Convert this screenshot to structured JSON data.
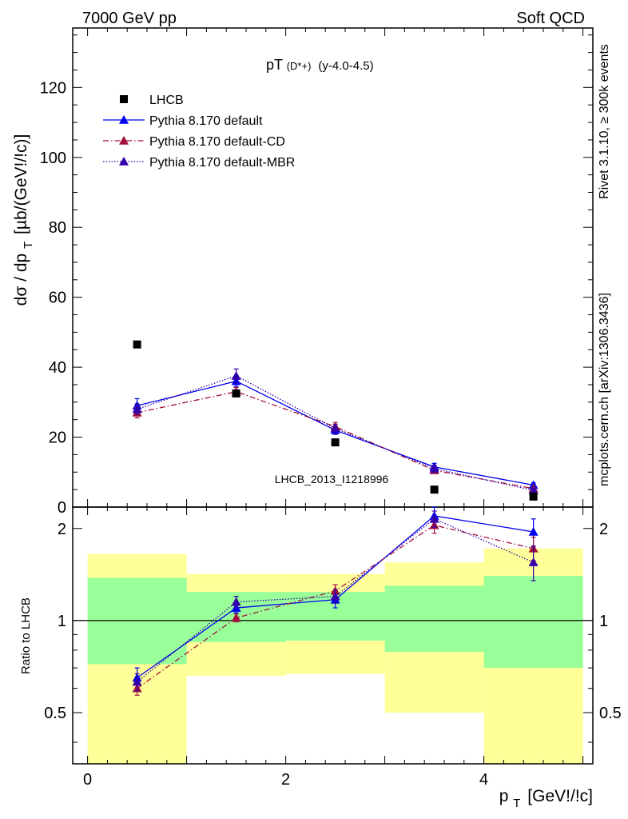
{
  "header": {
    "energy_label": "7000 GeV pp",
    "process_label": "Soft QCD"
  },
  "side_labels": {
    "rivet": "Rivet 3.1.10, ≥ 300k events",
    "mcplots": "mcplots.cern.ch [arXiv:1306.3436]"
  },
  "chart_data": [
    {
      "type": "scatter",
      "panel": "main",
      "title": "pT",
      "title_superscript": "(D*+)",
      "title_suffix": "(y-4.0-4.5)",
      "ylabel": "dσ / dp",
      "ylabel_subscript": "T",
      "ylabel_units": "[µb/(GeV!/!c)]",
      "watermark": "LHCB_2013_I1218996",
      "xlim": [
        -0.15,
        5.1
      ],
      "ylim": [
        0,
        137
      ],
      "yticks": [
        0,
        20,
        40,
        60,
        80,
        100,
        120
      ],
      "ytick_labels": [
        "0",
        "20",
        "40",
        "60",
        "80",
        "100",
        "120"
      ],
      "legend_position": "top-left",
      "series": [
        {
          "name": "LHCB",
          "style": "data",
          "color": "#000000",
          "marker": "square",
          "x": [
            0.5,
            1.5,
            2.5,
            3.5,
            4.5
          ],
          "values": [
            46.5,
            32.5,
            18.5,
            5.0,
            3.0
          ]
        },
        {
          "name": "Pythia 8.170 default",
          "style": "solid",
          "color": "#0000ee",
          "marker": "triangle",
          "x": [
            0.5,
            1.5,
            2.5,
            3.5,
            4.5
          ],
          "values": [
            29.0,
            36.0,
            22.0,
            11.5,
            6.3
          ],
          "errors": [
            2.0,
            1.5,
            1.2,
            1.0,
            0.6
          ]
        },
        {
          "name": "Pythia 8.170 default-CD",
          "style": "dashdot",
          "color": "#a0103a",
          "marker": "triangle",
          "x": [
            0.5,
            1.5,
            2.5,
            3.5,
            4.5
          ],
          "values": [
            27.0,
            33.0,
            23.0,
            10.5,
            5.3
          ],
          "errors": [
            1.5,
            1.2,
            1.2,
            0.8,
            0.5
          ]
        },
        {
          "name": "Pythia 8.170 default-MBR",
          "style": "dotted",
          "color": "#3300aa",
          "marker": "triangle",
          "x": [
            0.5,
            1.5,
            2.5,
            3.5,
            4.5
          ],
          "values": [
            28.0,
            37.5,
            22.5,
            11.0,
            4.8
          ],
          "errors": [
            1.5,
            2.0,
            1.2,
            1.0,
            0.6
          ]
        }
      ]
    },
    {
      "type": "scatter",
      "panel": "ratio",
      "xlabel": "p",
      "xlabel_subscript": "T",
      "xlabel_units": "[GeV!/!c]",
      "ylabel": "Ratio to LHCB",
      "yscale": "log",
      "ylim": [
        0.34,
        2.35
      ],
      "yticks": [
        0.5,
        1,
        2
      ],
      "ytick_labels": [
        "0.5",
        "1",
        "2"
      ],
      "xlim": [
        -0.15,
        5.1
      ],
      "xticks": [
        0,
        2,
        4
      ],
      "xtick_labels": [
        "0",
        "2",
        "4"
      ],
      "reference_line": 1,
      "uncertainty_bands": [
        {
          "x_low": 0,
          "x_high": 1,
          "yellow": [
            0.34,
            1.65
          ],
          "green": [
            0.72,
            1.38
          ]
        },
        {
          "x_low": 1,
          "x_high": 2,
          "yellow": [
            0.66,
            1.42
          ],
          "green": [
            0.85,
            1.24
          ]
        },
        {
          "x_low": 2,
          "x_high": 3,
          "yellow": [
            0.67,
            1.42
          ],
          "green": [
            0.86,
            1.24
          ]
        },
        {
          "x_low": 3,
          "x_high": 4,
          "yellow": [
            0.5,
            1.55
          ],
          "green": [
            0.79,
            1.3
          ]
        },
        {
          "x_low": 4,
          "x_high": 5,
          "yellow": [
            0.34,
            1.72
          ],
          "green": [
            0.7,
            1.4
          ]
        }
      ],
      "series": [
        {
          "name": "Pythia 8.170 default",
          "style": "solid",
          "color": "#0000ee",
          "marker": "triangle",
          "x": [
            0.5,
            1.5,
            2.5,
            3.5,
            4.5
          ],
          "values": [
            0.65,
            1.1,
            1.17,
            2.2,
            1.95
          ],
          "errors": [
            0.05,
            0.04,
            0.07,
            0.15,
            0.2
          ]
        },
        {
          "name": "Pythia 8.170 default-CD",
          "style": "dashdot",
          "color": "#a0103a",
          "marker": "triangle",
          "x": [
            0.5,
            1.5,
            2.5,
            3.5,
            4.5
          ],
          "values": [
            0.6,
            1.02,
            1.25,
            2.05,
            1.72
          ],
          "errors": [
            0.03,
            0.03,
            0.06,
            0.12,
            0.15
          ]
        },
        {
          "name": "Pythia 8.170 default-MBR",
          "style": "dotted",
          "color": "#3300aa",
          "marker": "triangle",
          "x": [
            0.5,
            1.5,
            2.5,
            3.5,
            4.5
          ],
          "values": [
            0.63,
            1.15,
            1.2,
            2.15,
            1.55
          ],
          "errors": [
            0.04,
            0.05,
            0.06,
            0.13,
            0.2
          ]
        }
      ]
    }
  ]
}
